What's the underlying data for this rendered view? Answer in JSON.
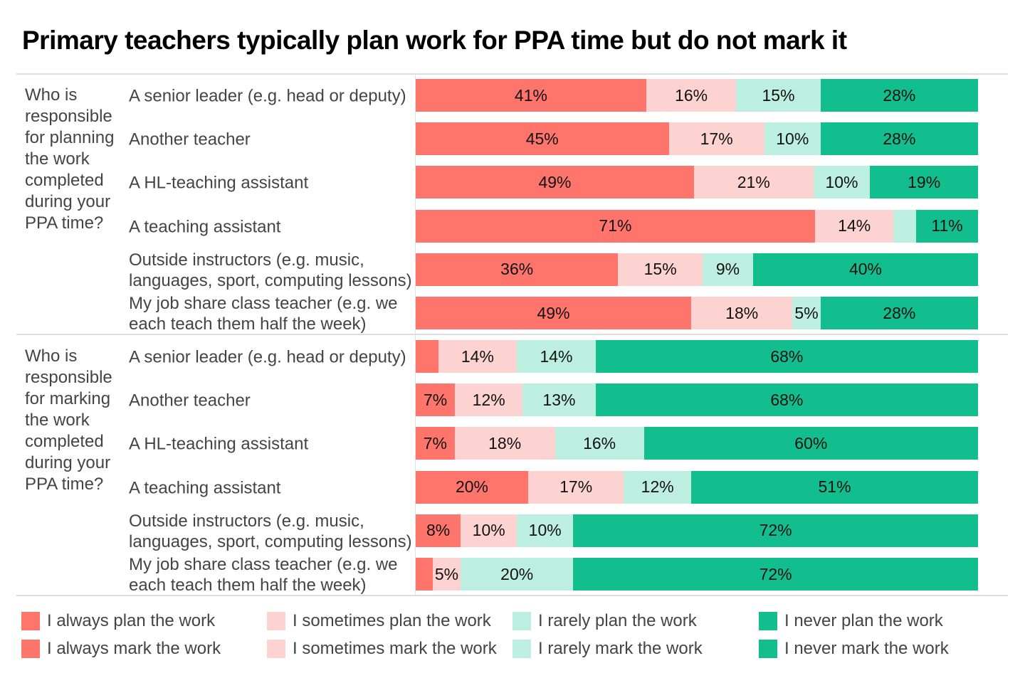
{
  "chart_data": {
    "type": "bar",
    "orientation": "horizontal-stacked-100",
    "title": "Primary teachers typically plan work for PPA time but do not mark it",
    "colors": [
      "#FF756B",
      "#FDD3D1",
      "#BDEFE0",
      "#12BE8E"
    ],
    "groups": [
      {
        "label": "Who is responsible for planning the work completed during your PPA time?",
        "series_names": [
          "I always plan the work",
          "I sometimes plan the work",
          "I rarely plan the work",
          "I never plan the work"
        ],
        "rows": [
          {
            "label": "A senior leader (e.g. head or deputy)",
            "values": [
              41,
              16,
              15,
              28
            ],
            "shown": [
              "41%",
              "16%",
              "15%",
              "28%"
            ]
          },
          {
            "label": "Another teacher",
            "values": [
              45,
              17,
              10,
              28
            ],
            "shown": [
              "45%",
              "17%",
              "10%",
              "28%"
            ]
          },
          {
            "label": "A HL-teaching assistant",
            "values": [
              49,
              21,
              10,
              19
            ],
            "shown": [
              "49%",
              "21%",
              "10%",
              "19%"
            ]
          },
          {
            "label": "A teaching assistant",
            "values": [
              71,
              14,
              4,
              11
            ],
            "shown": [
              "71%",
              "14%",
              "",
              "11%"
            ]
          },
          {
            "label": "Outside instructors (e.g. music, languages, sport, computing lessons)",
            "values": [
              36,
              15,
              9,
              40
            ],
            "shown": [
              "36%",
              "15%",
              "9%",
              "40%"
            ]
          },
          {
            "label": "My job share class teacher (e.g. we each teach them half the week)",
            "values": [
              49,
              18,
              5,
              28
            ],
            "shown": [
              "49%",
              "18%",
              "5%",
              "28%"
            ]
          }
        ]
      },
      {
        "label": "Who is responsible for marking the work completed during your PPA time?",
        "series_names": [
          "I always mark the work",
          "I sometimes mark the work",
          "I rarely mark the work",
          "I never mark the work"
        ],
        "rows": [
          {
            "label": "A senior leader (e.g. head or deputy)",
            "values": [
              4,
              14,
              14,
              68
            ],
            "shown": [
              "",
              "14%",
              "14%",
              "68%"
            ]
          },
          {
            "label": "Another teacher",
            "values": [
              7,
              12,
              13,
              68
            ],
            "shown": [
              "7%",
              "12%",
              "13%",
              "68%"
            ]
          },
          {
            "label": "A HL-teaching assistant",
            "values": [
              7,
              18,
              16,
              60
            ],
            "shown": [
              "7%",
              "18%",
              "16%",
              "60%"
            ]
          },
          {
            "label": "A teaching assistant",
            "values": [
              20,
              17,
              12,
              51
            ],
            "shown": [
              "20%",
              "17%",
              "12%",
              "51%"
            ]
          },
          {
            "label": "Outside instructors (e.g. music, languages, sport, computing lessons)",
            "values": [
              8,
              10,
              10,
              72
            ],
            "shown": [
              "8%",
              "10%",
              "10%",
              "72%"
            ]
          },
          {
            "label": "My job share class teacher (e.g. we each teach them half the week)",
            "values": [
              3,
              5,
              20,
              72
            ],
            "shown": [
              "",
              "5%",
              "20%",
              "72%"
            ]
          }
        ]
      }
    ],
    "legend": [
      [
        "I always plan the work",
        "I sometimes plan the work",
        "I rarely plan the work",
        "I never plan the work"
      ],
      [
        "I always mark the work",
        "I sometimes mark the work",
        "I rarely mark the work",
        "I never mark the work"
      ]
    ],
    "legend_position": "bottom"
  }
}
